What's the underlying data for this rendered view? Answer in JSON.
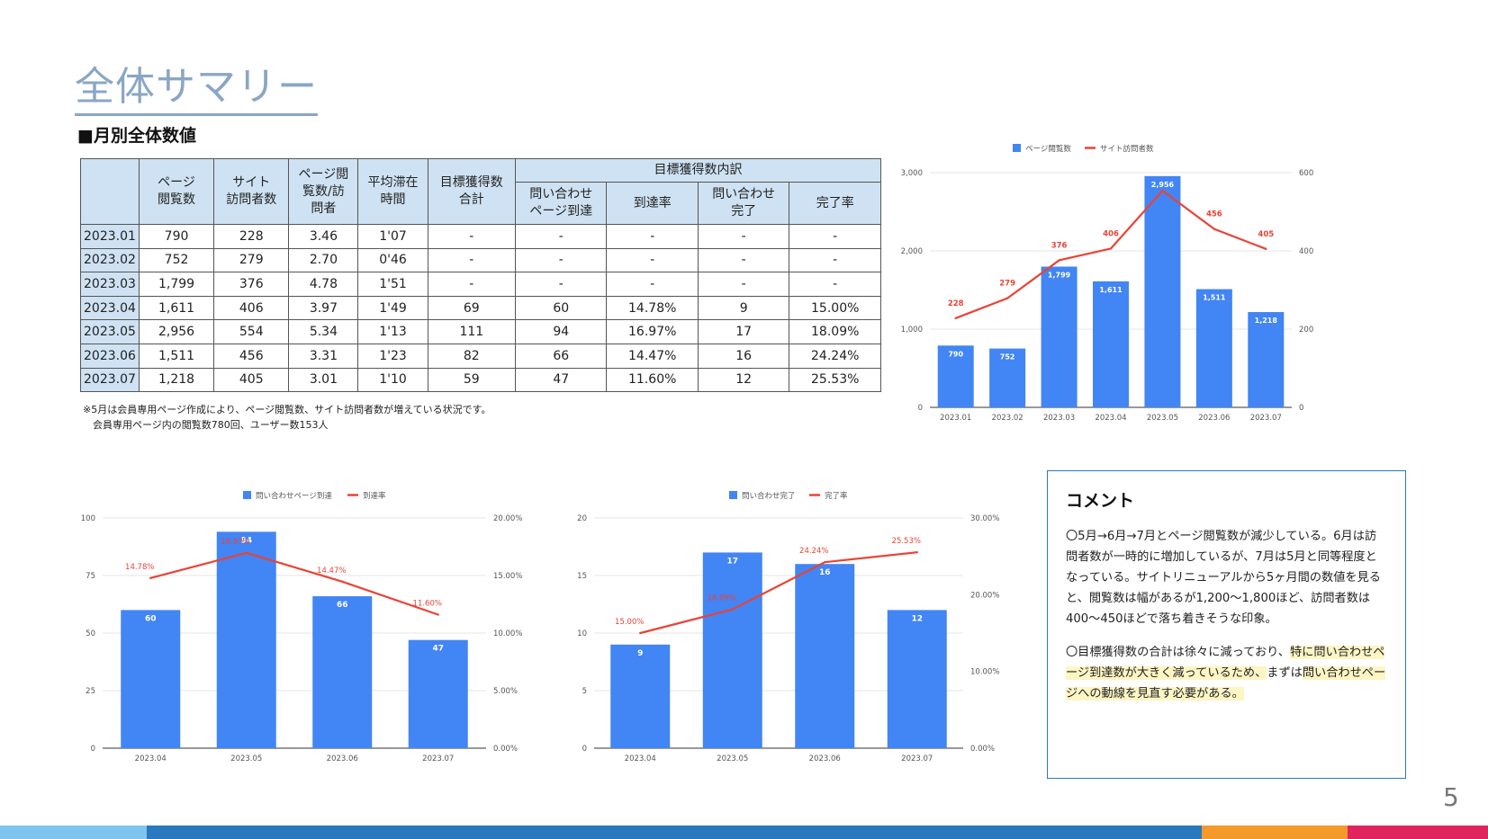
{
  "page": {
    "title": "全体サマリー",
    "section_title": "■月別全体数値",
    "note_lines": [
      "※5月は会員専用ページ作成により、ページ閲覧数、サイト訪問者数が増えている状況です。",
      "　会員専用ページ内の閲覧数780回、ユーザー数153人"
    ],
    "page_number": "5"
  },
  "table": {
    "group_header": "目標獲得数内訳",
    "headers": [
      "",
      "ページ\n閲覧数",
      "サイト\n訪問者数",
      "ページ閲\n覧数/訪\n問者",
      "平均滞在\n時間",
      "目標獲得数\n合計",
      "問い合わせ\nページ到達",
      "到達率",
      "問い合わせ\n完了",
      "完了率"
    ],
    "rows": [
      [
        "2023.01",
        "790",
        "228",
        "3.46",
        "1'07",
        "-",
        "-",
        "-",
        "-",
        "-"
      ],
      [
        "2023.02",
        "752",
        "279",
        "2.70",
        "0'46",
        "-",
        "-",
        "-",
        "-",
        "-"
      ],
      [
        "2023.03",
        "1,799",
        "376",
        "4.78",
        "1'51",
        "-",
        "-",
        "-",
        "-",
        "-"
      ],
      [
        "2023.04",
        "1,611",
        "406",
        "3.97",
        "1'49",
        "69",
        "60",
        "14.78%",
        "9",
        "15.00%"
      ],
      [
        "2023.05",
        "2,956",
        "554",
        "5.34",
        "1'13",
        "111",
        "94",
        "16.97%",
        "17",
        "18.09%"
      ],
      [
        "2023.06",
        "1,511",
        "456",
        "3.31",
        "1'23",
        "82",
        "66",
        "14.47%",
        "16",
        "24.24%"
      ],
      [
        "2023.07",
        "1,218",
        "405",
        "3.01",
        "1'10",
        "59",
        "47",
        "11.60%",
        "12",
        "25.53%"
      ]
    ]
  },
  "comment": {
    "title": "コメント",
    "para1": "〇5月→6月→7月とページ閲覧数が減少している。6月は訪問者数が一時的に増加しているが、7月は5月と同等程度となっている。サイトリニューアルから5ヶ月間の数値を見ると、閲覧数は幅があるが1,200～1,800ほど、訪問者数は 400～450ほどで落ち着きそうな印象。",
    "para2_plain": "〇目標獲得数の合計は徐々に減っており、",
    "para2_highlight1": "特に問い合わせページ到達数が大きく減っているため、",
    "para2_mid": "まずは",
    "para2_highlight2": "問い合わせページへの動線を見直す必要がある。"
  },
  "colors": {
    "bar": "#4285f4",
    "line": "#ea4335",
    "header_bg": "#cfe2f3",
    "title": "#8aa6c4",
    "comment_border": "#2a76c2",
    "bottom_bar": [
      "#7fc4ee",
      "#2a78be",
      "#f39a2a",
      "#e0245e"
    ]
  },
  "chart_data": [
    {
      "type": "bar",
      "categories": [
        "2023.01",
        "2023.02",
        "2023.03",
        "2023.04",
        "2023.05",
        "2023.06",
        "2023.07"
      ],
      "series": [
        {
          "name": "ページ閲覧数",
          "type": "bar",
          "axis": "left",
          "values": [
            790,
            752,
            1799,
            1611,
            2956,
            1511,
            1218
          ],
          "labels": [
            "790",
            "752",
            "1,799",
            "1,611",
            "2,956",
            "1,511",
            "1,218"
          ]
        },
        {
          "name": "サイト訪問者数",
          "type": "line",
          "axis": "right",
          "values": [
            228,
            279,
            376,
            406,
            554,
            456,
            405
          ],
          "labels": [
            "228",
            "279",
            "376",
            "406",
            "",
            "456",
            "405"
          ]
        }
      ],
      "ylim": [
        0,
        3000
      ],
      "y2lim": [
        0,
        600
      ],
      "yticks": [
        0,
        1000,
        2000,
        3000
      ],
      "yticklabels": [
        "0",
        "1,000",
        "2,000",
        "3,000"
      ],
      "y2ticks": [
        0,
        200,
        400,
        600
      ],
      "y2ticklabels": [
        "0",
        "200",
        "400",
        "600"
      ],
      "legend": "top",
      "grid": true
    },
    {
      "type": "bar",
      "categories": [
        "2023.04",
        "2023.05",
        "2023.06",
        "2023.07"
      ],
      "series": [
        {
          "name": "問い合わせページ到達",
          "type": "bar",
          "axis": "left",
          "values": [
            60,
            94,
            66,
            47
          ],
          "labels": [
            "60",
            "94",
            "66",
            "47"
          ]
        },
        {
          "name": "到達率",
          "type": "line",
          "axis": "right",
          "values": [
            14.78,
            16.97,
            14.47,
            11.6
          ],
          "labels": [
            "14.78%",
            "16.97%",
            "14.47%",
            "11.60%"
          ]
        }
      ],
      "ylim": [
        0,
        100
      ],
      "y2lim": [
        0,
        20
      ],
      "yticks": [
        0,
        25,
        50,
        75,
        100
      ],
      "yticklabels": [
        "0",
        "25",
        "50",
        "75",
        "100"
      ],
      "y2ticks": [
        0,
        5,
        10,
        15,
        20
      ],
      "y2ticklabels": [
        "0.00%",
        "5.00%",
        "10.00%",
        "15.00%",
        "20.00%"
      ],
      "legend": "top",
      "grid": true
    },
    {
      "type": "bar",
      "categories": [
        "2023.04",
        "2023.05",
        "2023.06",
        "2023.07"
      ],
      "series": [
        {
          "name": "問い合わせ完了",
          "type": "bar",
          "axis": "left",
          "values": [
            9,
            17,
            16,
            12
          ],
          "labels": [
            "9",
            "17",
            "16",
            "12"
          ]
        },
        {
          "name": "完了率",
          "type": "line",
          "axis": "right",
          "values": [
            15.0,
            18.09,
            24.24,
            25.53
          ],
          "labels": [
            "15.00%",
            "18.09%",
            "24.24%",
            "25.53%"
          ]
        }
      ],
      "ylim": [
        0,
        20
      ],
      "y2lim": [
        0,
        30
      ],
      "yticks": [
        0,
        5,
        10,
        15,
        20
      ],
      "yticklabels": [
        "0",
        "5",
        "10",
        "15",
        "20"
      ],
      "y2ticks": [
        0,
        10,
        20,
        30
      ],
      "y2ticklabels": [
        "0.00%",
        "10.00%",
        "20.00%",
        "30.00%"
      ],
      "legend": "top",
      "grid": true
    }
  ]
}
